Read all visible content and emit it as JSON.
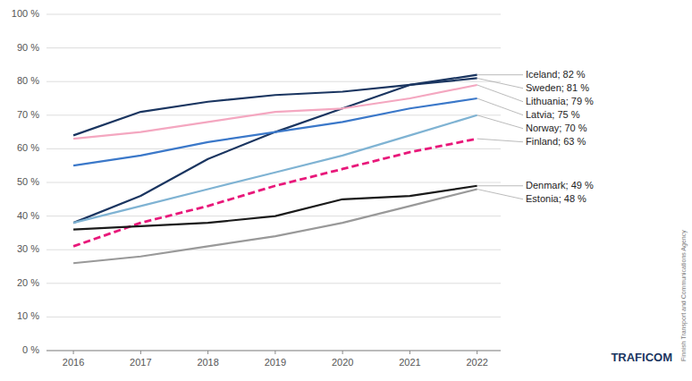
{
  "chart_data": {
    "type": "line",
    "x": [
      2016,
      2017,
      2018,
      2019,
      2020,
      2021,
      2022
    ],
    "series": [
      {
        "name": "Iceland; 82 %",
        "color": "#1a3560",
        "line_style": "solid",
        "values": [
          38,
          46,
          57,
          65,
          72,
          79,
          82
        ]
      },
      {
        "name": "Sweden; 81 %",
        "color": "#1a3560",
        "line_style": "solid",
        "values": [
          64,
          71,
          74,
          76,
          77,
          79,
          81
        ]
      },
      {
        "name": "Lithuania; 79 %",
        "color": "#f4a7c0",
        "line_style": "solid",
        "values": [
          63,
          65,
          68,
          71,
          72,
          75,
          79
        ]
      },
      {
        "name": "Latvia; 75 %",
        "color": "#3b78c9",
        "line_style": "solid",
        "values": [
          55,
          58,
          62,
          65,
          68,
          72,
          75
        ]
      },
      {
        "name": "Norway; 70 %",
        "color": "#7fb3d3",
        "line_style": "solid",
        "values": [
          38,
          43,
          48,
          53,
          58,
          64,
          70
        ]
      },
      {
        "name": "Finland; 63 %",
        "color": "#e8187a",
        "line_style": "dashed",
        "values": [
          31,
          38,
          43,
          49,
          54,
          59,
          63
        ]
      },
      {
        "name": "Denmark; 49 %",
        "color": "#1a1a1a",
        "line_style": "solid",
        "values": [
          36,
          37,
          38,
          40,
          45,
          46,
          49
        ]
      },
      {
        "name": "Estonia; 48 %",
        "color": "#999999",
        "line_style": "solid",
        "values": [
          26,
          28,
          31,
          34,
          38,
          43,
          48
        ]
      }
    ],
    "xlim": [
      2015.6,
      2022.35
    ],
    "xticks": [
      2016,
      2017,
      2018,
      2019,
      2020,
      2021,
      2022
    ],
    "ylim": [
      0,
      100
    ],
    "yticks": [
      {
        "value": 0,
        "label": "0 %"
      },
      {
        "value": 10,
        "label": "10 %"
      },
      {
        "value": 20,
        "label": "20 %"
      },
      {
        "value": 30,
        "label": "30 %"
      },
      {
        "value": 40,
        "label": "40 %"
      },
      {
        "value": 50,
        "label": "50 %"
      },
      {
        "value": 60,
        "label": "60 %"
      },
      {
        "value": 70,
        "label": "70 %"
      },
      {
        "value": 80,
        "label": "80 %"
      },
      {
        "value": 90,
        "label": "90 %"
      },
      {
        "value": 100,
        "label": "100 %"
      }
    ],
    "grid": true,
    "annotations": [
      "TRAFICOM",
      "Finnish Transport and Communications Agency"
    ]
  }
}
